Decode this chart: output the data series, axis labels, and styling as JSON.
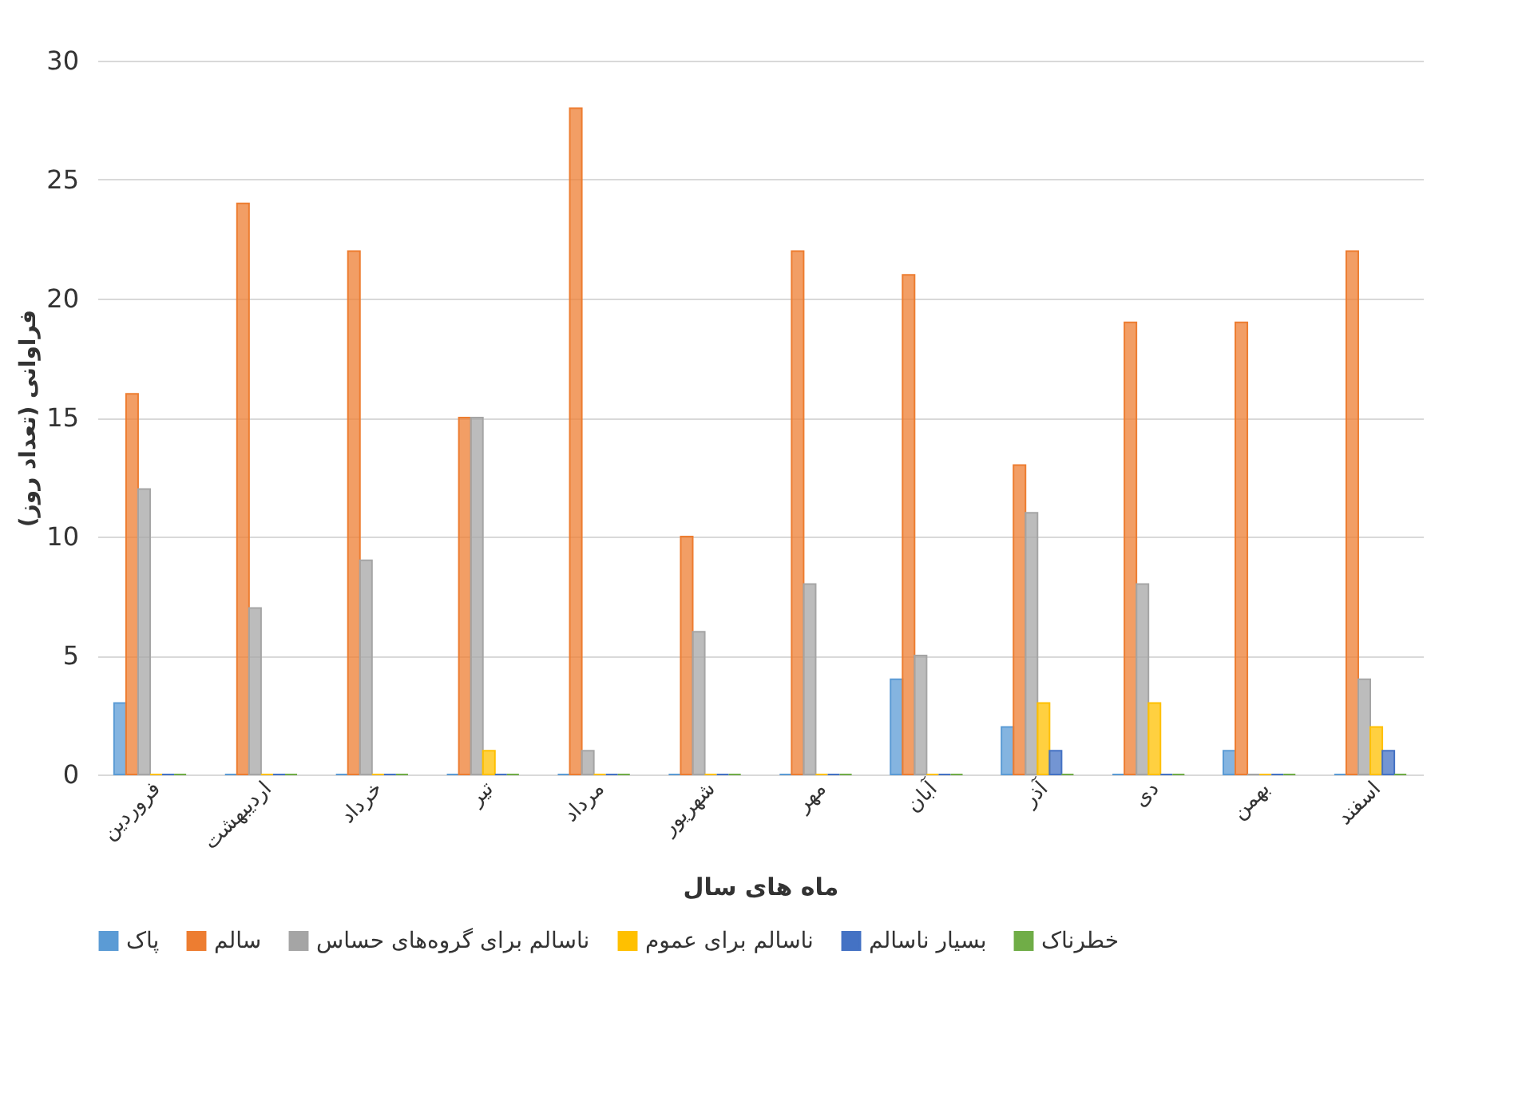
{
  "chart_data": {
    "type": "bar",
    "categories": [
      "فروردین",
      "اردیبهشت",
      "خرداد",
      "تیر",
      "مرداد",
      "شهریور",
      "مهر",
      "آبان",
      "آذر",
      "دی",
      "بهمن",
      "اسفند"
    ],
    "series": [
      {
        "name": "پاک",
        "color": "#5b9bd5",
        "values": [
          3,
          0,
          0,
          0,
          0,
          0,
          0,
          4,
          2,
          0,
          1,
          0
        ]
      },
      {
        "name": "سالم",
        "color": "#ed7d31",
        "values": [
          16,
          24,
          22,
          15,
          28,
          10,
          22,
          21,
          13,
          19,
          19,
          22
        ]
      },
      {
        "name": "ناسالم برای گروه‌های حساس",
        "color": "#a5a5a5",
        "values": [
          12,
          7,
          9,
          15,
          1,
          6,
          8,
          5,
          11,
          8,
          0,
          4
        ]
      },
      {
        "name": "ناسالم برای عموم",
        "color": "#ffc000",
        "values": [
          0,
          0,
          0,
          1,
          0,
          0,
          0,
          0,
          3,
          3,
          0,
          2
        ]
      },
      {
        "name": "بسیار ناسالم",
        "color": "#4472c4",
        "values": [
          0,
          0,
          0,
          0,
          0,
          0,
          0,
          0,
          1,
          0,
          0,
          1
        ]
      },
      {
        "name": "خطرناک",
        "color": "#70ad47",
        "values": [
          0,
          0,
          0,
          0,
          0,
          0,
          0,
          0,
          0,
          0,
          0,
          0
        ]
      }
    ],
    "xlabel": "ماه های سال",
    "ylabel": "فراوانی (تعداد روز)",
    "ylim": [
      0,
      30
    ],
    "yticks": [
      0,
      5,
      10,
      15,
      20,
      25,
      30
    ],
    "grid": "y",
    "legend": "bottom"
  }
}
